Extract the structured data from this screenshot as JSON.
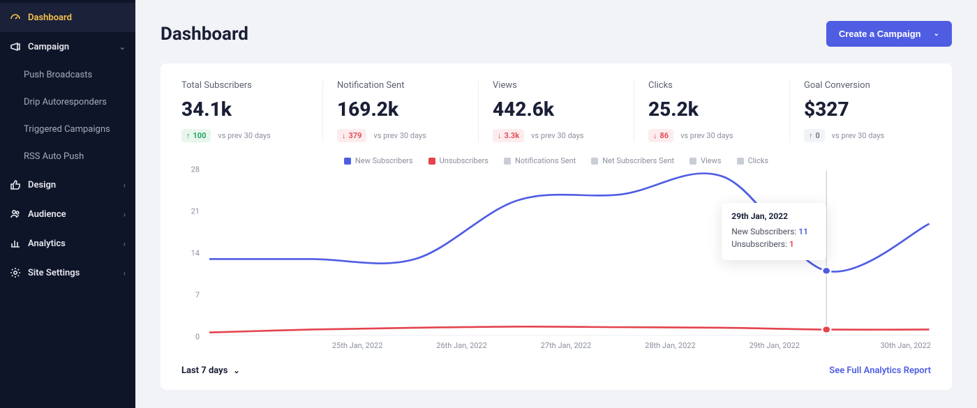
{
  "colors": {
    "sidebar_bg": "#0f1529",
    "accent_yellow": "#f5c04e",
    "primary": "#4f5de3",
    "danger": "#e4434d",
    "success": "#17a35a",
    "grid": "#eceef3",
    "text": "#1a1f36",
    "muted": "#8a8f9c"
  },
  "sidebar": {
    "items": [
      {
        "label": "Dashboard",
        "icon": "gauge",
        "active": true
      },
      {
        "label": "Campaign",
        "icon": "megaphone",
        "expandable": true,
        "open": true,
        "children": [
          {
            "label": "Push Broadcasts"
          },
          {
            "label": "Drip Autoresponders"
          },
          {
            "label": "Triggered Campaigns"
          },
          {
            "label": "RSS Auto Push"
          }
        ]
      },
      {
        "label": "Design",
        "icon": "thumbs-up",
        "expandable": true
      },
      {
        "label": "Audience",
        "icon": "users",
        "expandable": true
      },
      {
        "label": "Analytics",
        "icon": "bar-chart",
        "expandable": true
      },
      {
        "label": "Site Settings",
        "icon": "gear",
        "expandable": true
      }
    ]
  },
  "header": {
    "title": "Dashboard",
    "cta": "Create a Campaign"
  },
  "stats": [
    {
      "title": "Total Subscribers",
      "value": "34.1k",
      "delta": "100",
      "dir": "up",
      "vs": "vs prev 30 days"
    },
    {
      "title": "Notification Sent",
      "value": "169.2k",
      "delta": "379",
      "dir": "down",
      "vs": "vs prev 30 days"
    },
    {
      "title": "Views",
      "value": "442.6k",
      "delta": "3.3k",
      "dir": "down",
      "vs": "vs prev 30 days"
    },
    {
      "title": "Clicks",
      "value": "25.2k",
      "delta": "86",
      "dir": "down",
      "vs": "vs prev 30 days"
    },
    {
      "title": "Goal Conversion",
      "value": "$327",
      "delta": "0",
      "dir": "neutral",
      "vs": "vs prev 30 days"
    }
  ],
  "chart": {
    "type": "line",
    "legend": [
      {
        "label": "New Subscribers",
        "color": "#4f5de3",
        "active": true
      },
      {
        "label": "Unsubscribers",
        "color": "#e4434d",
        "active": true
      },
      {
        "label": "Notifications Sent",
        "color": "#c9cdd6",
        "active": false
      },
      {
        "label": "Net Subscribers Sent",
        "color": "#c9cdd6",
        "active": false
      },
      {
        "label": "Views",
        "color": "#c9cdd6",
        "active": false
      },
      {
        "label": "Clicks",
        "color": "#c9cdd6",
        "active": false
      }
    ],
    "ylim": [
      0,
      28
    ],
    "yticks": [
      0,
      7,
      14,
      21,
      28
    ],
    "xlabels": [
      "",
      "25th Jan, 2022",
      "26th Jan, 2022",
      "27th Jan, 2022",
      "28th Jan, 2022",
      "29th Jan, 2022",
      "30th Jan, 2022"
    ],
    "series": {
      "new_subscribers": {
        "color": "#4f5de3",
        "width": 2.5,
        "points": [
          13,
          13,
          13,
          23,
          24,
          27,
          11,
          19
        ]
      },
      "unsubscribers": {
        "color": "#e4434d",
        "width": 2.5,
        "points": [
          0.5,
          1,
          1.3,
          1.5,
          1.4,
          1.3,
          1,
          1
        ]
      }
    },
    "marker": {
      "index": 6,
      "radius": 5
    },
    "tooltip": {
      "date": "29th Jan, 2022",
      "rows": [
        {
          "label": "New Subscribers:",
          "value": "11",
          "cls": "val-blue"
        },
        {
          "label": "Unsubscribers:",
          "value": "1",
          "cls": "val-red"
        }
      ]
    },
    "grid_color": "#eceef3",
    "background": "#ffffff"
  },
  "footer": {
    "range": "Last 7 days",
    "link": "See Full Analytics Report"
  }
}
